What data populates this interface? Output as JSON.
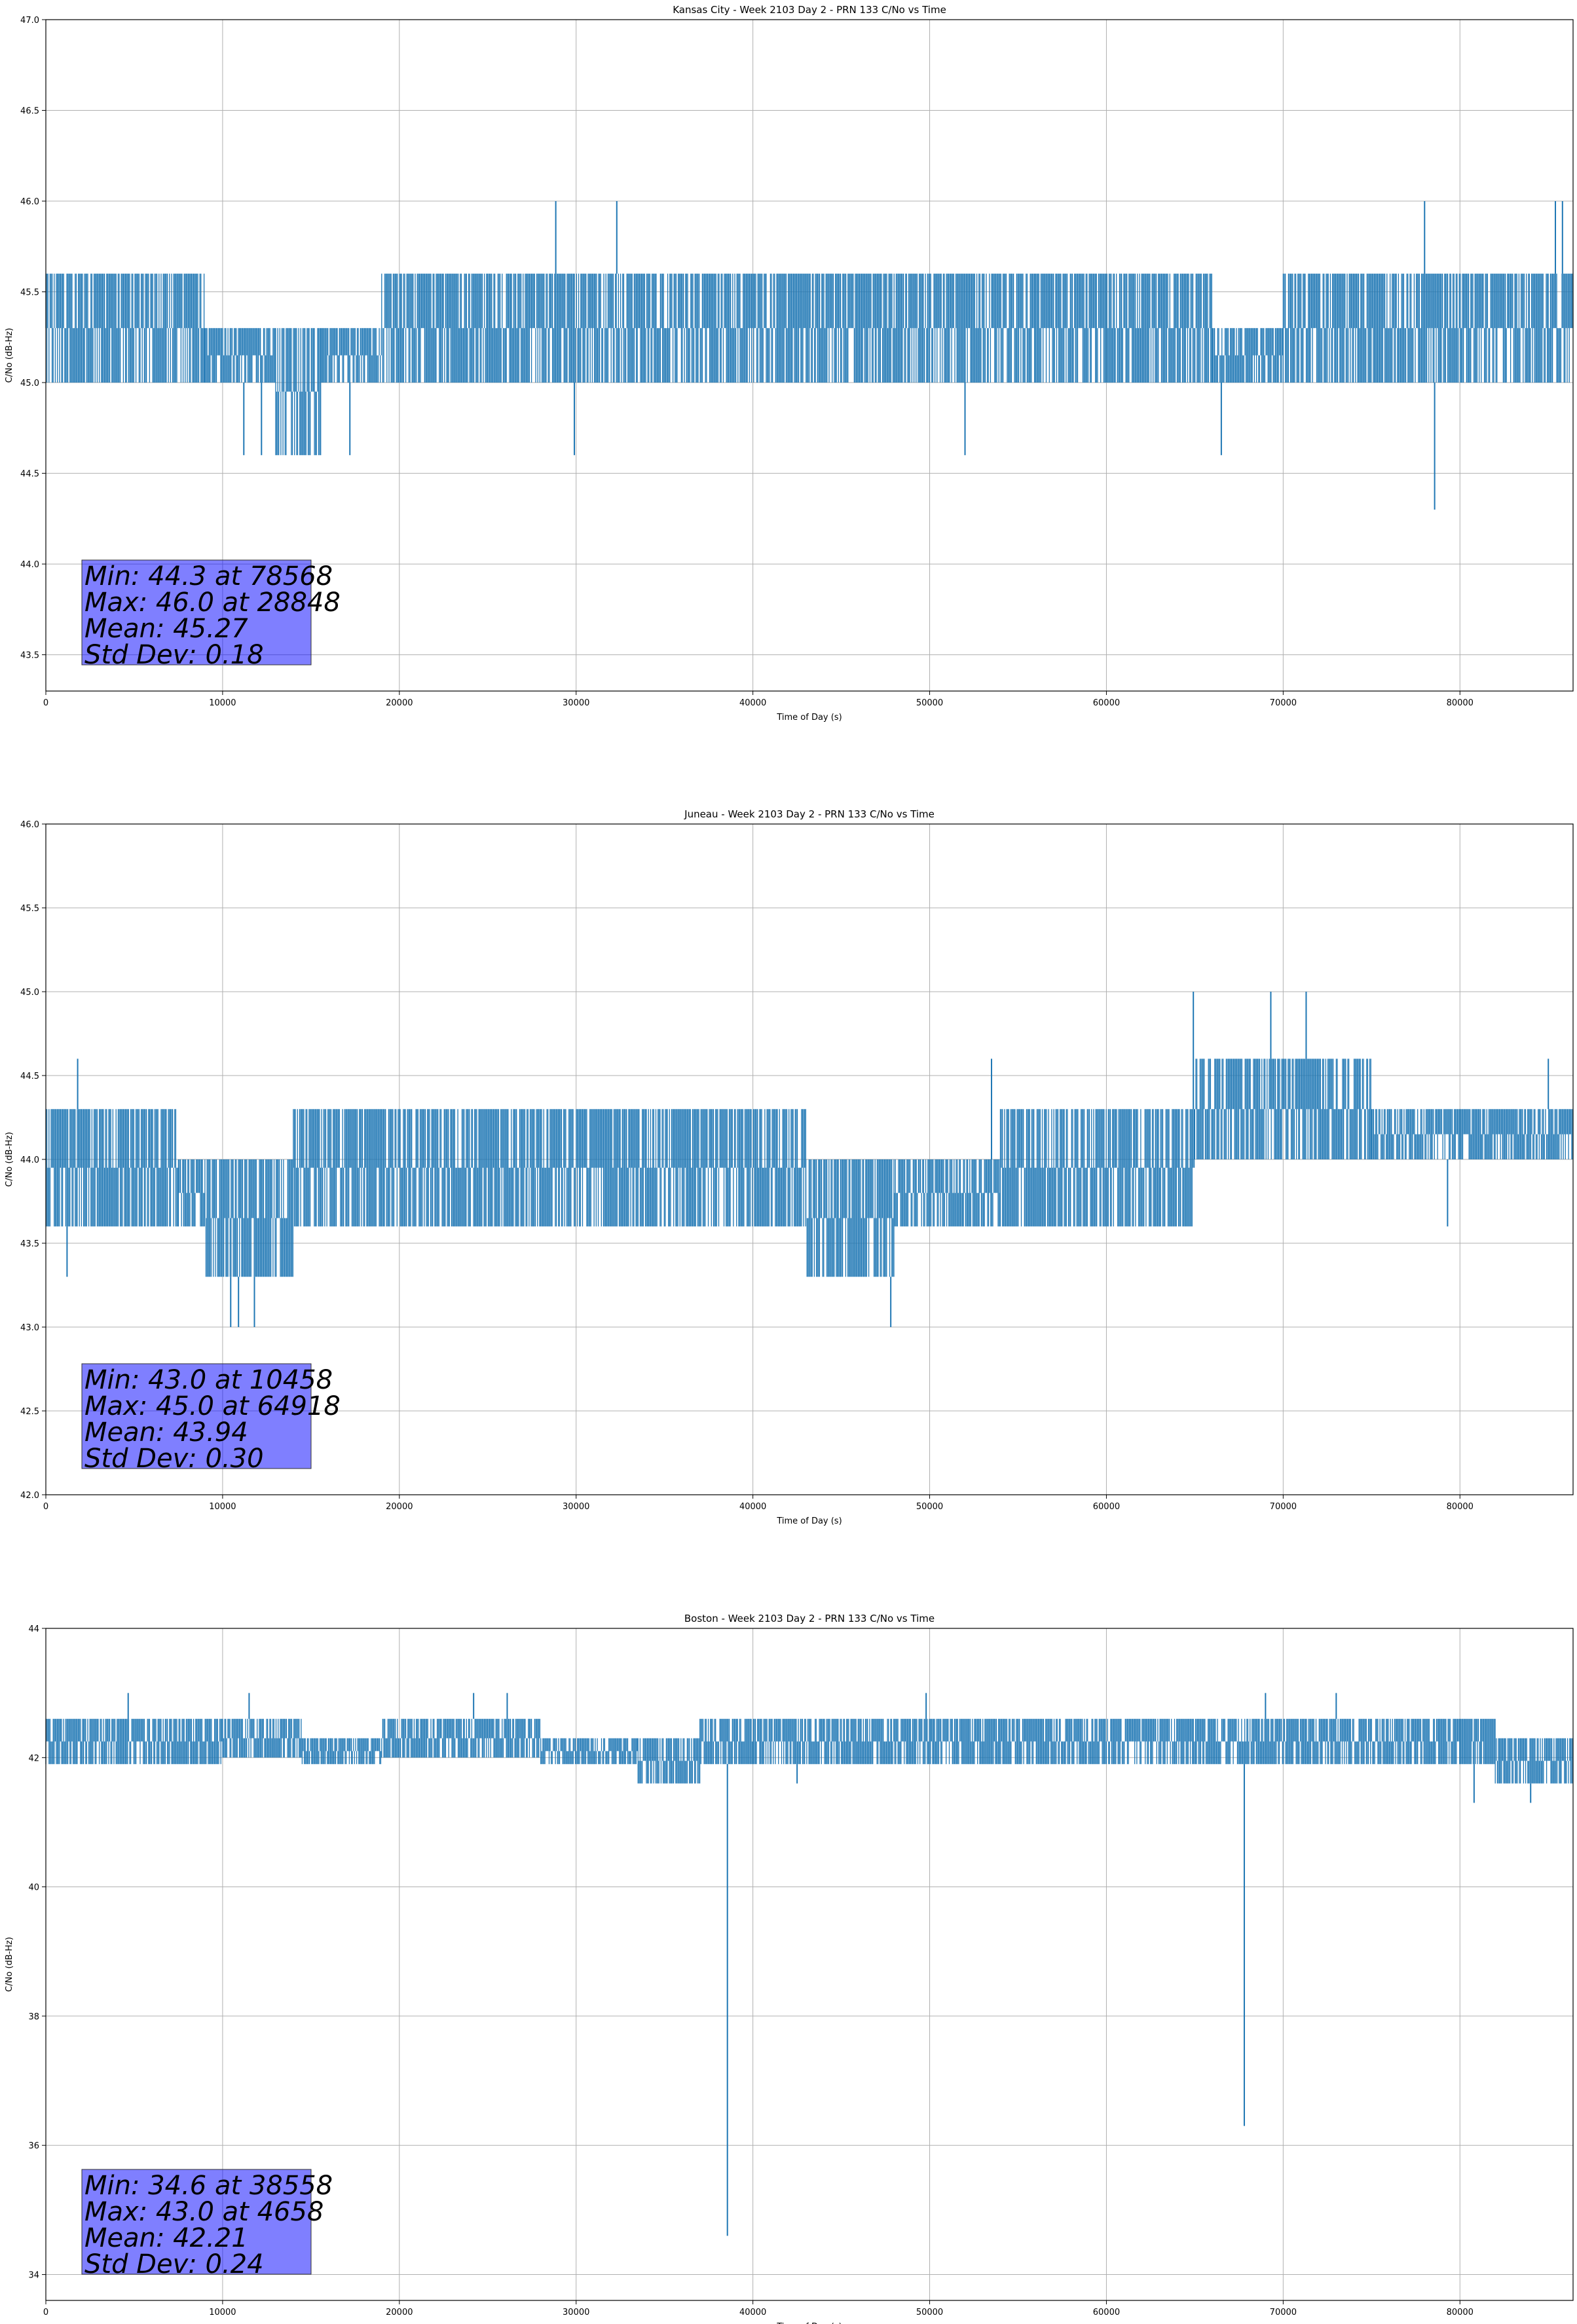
{
  "chart_data": [
    {
      "type": "line",
      "title": "Kansas City - Week 2103 Day 2 - PRN 133 C/No vs Time",
      "xlabel": "Time of Day (s)",
      "ylabel": "C/No (dB-Hz)",
      "xlim": [
        0,
        86400
      ],
      "ylim": [
        43.3,
        47.0
      ],
      "xticks": [
        0,
        10000,
        20000,
        30000,
        40000,
        50000,
        60000,
        70000,
        80000
      ],
      "xtick_labels": [
        "0",
        "10000",
        "20000",
        "30000",
        "40000",
        "50000",
        "60000",
        "70000",
        "80000"
      ],
      "yticks": [
        43.5,
        44.0,
        44.5,
        45.0,
        45.5,
        46.0,
        46.5,
        47.0
      ],
      "ytick_labels": [
        "43.5",
        "44.0",
        "44.5",
        "45.0",
        "45.5",
        "46.0",
        "46.5",
        "47.0"
      ],
      "grid": true,
      "color": "#1f77b4",
      "segments": [
        {
          "x": [
            0,
            9000
          ],
          "lo": 45.0,
          "hi": 45.6
        },
        {
          "x": [
            9000,
            13000
          ],
          "lo": 45.0,
          "hi": 45.3
        },
        {
          "x": [
            13000,
            15600
          ],
          "lo": 44.6,
          "hi": 45.3
        },
        {
          "x": [
            15600,
            19000
          ],
          "lo": 45.0,
          "hi": 45.3
        },
        {
          "x": [
            19000,
            56000
          ],
          "lo": 45.0,
          "hi": 45.6
        },
        {
          "x": [
            56000,
            66000
          ],
          "lo": 45.0,
          "hi": 45.6
        },
        {
          "x": [
            66000,
            70000
          ],
          "lo": 45.0,
          "hi": 45.3
        },
        {
          "x": [
            70000,
            86400
          ],
          "lo": 45.0,
          "hi": 45.6
        }
      ],
      "spikes": [
        {
          "x": 28848,
          "y": 46.0
        },
        {
          "x": 32300,
          "y": 46.0
        },
        {
          "x": 29900,
          "y": 44.6
        },
        {
          "x": 52000,
          "y": 44.6
        },
        {
          "x": 66500,
          "y": 44.6
        },
        {
          "x": 78000,
          "y": 46.0
        },
        {
          "x": 78568,
          "y": 44.3
        },
        {
          "x": 85400,
          "y": 46.0
        },
        {
          "x": 85800,
          "y": 46.0
        },
        {
          "x": 11200,
          "y": 44.6
        },
        {
          "x": 12200,
          "y": 44.6
        },
        {
          "x": 17200,
          "y": 44.6
        }
      ],
      "stats": [
        "Min: 44.3 at 78568",
        "Max: 46.0 at 28848",
        "Mean: 45.27",
        "Std Dev: 0.18"
      ]
    },
    {
      "type": "line",
      "title": "Juneau - Week 2103 Day 2 - PRN 133 C/No vs Time",
      "xlabel": "Time of Day (s)",
      "ylabel": "C/No (dB-Hz)",
      "xlim": [
        0,
        86400
      ],
      "ylim": [
        42.0,
        46.0
      ],
      "xticks": [
        0,
        10000,
        20000,
        30000,
        40000,
        50000,
        60000,
        70000,
        80000
      ],
      "xtick_labels": [
        "0",
        "10000",
        "20000",
        "30000",
        "40000",
        "50000",
        "60000",
        "70000",
        "80000"
      ],
      "yticks": [
        42.0,
        42.5,
        43.0,
        43.5,
        44.0,
        44.5,
        45.0,
        45.5,
        46.0
      ],
      "ytick_labels": [
        "42.0",
        "42.5",
        "43.0",
        "43.5",
        "44.0",
        "44.5",
        "45.0",
        "45.5",
        "46.0"
      ],
      "grid": true,
      "color": "#1f77b4",
      "segments": [
        {
          "x": [
            0,
            7500
          ],
          "lo": 43.6,
          "hi": 44.3
        },
        {
          "x": [
            7500,
            9000
          ],
          "lo": 43.6,
          "hi": 44.0
        },
        {
          "x": [
            9000,
            14000
          ],
          "lo": 43.3,
          "hi": 44.0
        },
        {
          "x": [
            14000,
            43000
          ],
          "lo": 43.6,
          "hi": 44.3
        },
        {
          "x": [
            43000,
            48000
          ],
          "lo": 43.3,
          "hi": 44.0
        },
        {
          "x": [
            48000,
            54000
          ],
          "lo": 43.6,
          "hi": 44.0
        },
        {
          "x": [
            54000,
            65000
          ],
          "lo": 43.6,
          "hi": 44.3
        },
        {
          "x": [
            65000,
            75000
          ],
          "lo": 44.0,
          "hi": 44.6
        },
        {
          "x": [
            75000,
            86400
          ],
          "lo": 44.0,
          "hi": 44.3
        }
      ],
      "spikes": [
        {
          "x": 1800,
          "y": 44.6
        },
        {
          "x": 1200,
          "y": 43.3
        },
        {
          "x": 10458,
          "y": 43.0
        },
        {
          "x": 10900,
          "y": 43.0
        },
        {
          "x": 11800,
          "y": 43.0
        },
        {
          "x": 47800,
          "y": 43.0
        },
        {
          "x": 64918,
          "y": 45.0
        },
        {
          "x": 69300,
          "y": 45.0
        },
        {
          "x": 71300,
          "y": 45.0
        },
        {
          "x": 79300,
          "y": 43.6
        },
        {
          "x": 53500,
          "y": 44.6
        },
        {
          "x": 85000,
          "y": 44.6
        }
      ],
      "stats": [
        "Min: 43.0 at 10458",
        "Max: 45.0 at 64918",
        "Mean: 43.94",
        "Std Dev: 0.30"
      ]
    },
    {
      "type": "line",
      "title": "Boston - Week 2103 Day 2 - PRN 133 C/No vs Time",
      "xlabel": "Time of Day (s)",
      "ylabel": "C/No (dB-Hz)",
      "xlim": [
        0,
        86400
      ],
      "ylim": [
        33.6,
        44.0
      ],
      "xticks": [
        0,
        10000,
        20000,
        30000,
        40000,
        50000,
        60000,
        70000,
        80000
      ],
      "xtick_labels": [
        "0",
        "10000",
        "20000",
        "30000",
        "40000",
        "50000",
        "60000",
        "70000",
        "80000"
      ],
      "yticks": [
        34,
        36,
        38,
        40,
        42,
        44
      ],
      "ytick_labels": [
        "34",
        "36",
        "38",
        "40",
        "42",
        "44"
      ],
      "grid": true,
      "color": "#1f77b4",
      "segments": [
        {
          "x": [
            0,
            10000
          ],
          "lo": 41.9,
          "hi": 42.6
        },
        {
          "x": [
            10000,
            14500
          ],
          "lo": 42.0,
          "hi": 42.6
        },
        {
          "x": [
            14500,
            19000
          ],
          "lo": 41.9,
          "hi": 42.3
        },
        {
          "x": [
            19000,
            28000
          ],
          "lo": 42.0,
          "hi": 42.6
        },
        {
          "x": [
            28000,
            33500
          ],
          "lo": 41.9,
          "hi": 42.3
        },
        {
          "x": [
            33500,
            37000
          ],
          "lo": 41.6,
          "hi": 42.3
        },
        {
          "x": [
            37000,
            82000
          ],
          "lo": 41.9,
          "hi": 42.6
        },
        {
          "x": [
            82000,
            86400
          ],
          "lo": 41.6,
          "hi": 42.3
        }
      ],
      "spikes": [
        {
          "x": 4658,
          "y": 43.0
        },
        {
          "x": 11500,
          "y": 43.0
        },
        {
          "x": 24200,
          "y": 43.0
        },
        {
          "x": 26100,
          "y": 43.0
        },
        {
          "x": 38558,
          "y": 34.6
        },
        {
          "x": 49800,
          "y": 43.0
        },
        {
          "x": 67800,
          "y": 36.3
        },
        {
          "x": 69000,
          "y": 43.0
        },
        {
          "x": 73000,
          "y": 43.0
        },
        {
          "x": 80800,
          "y": 41.3
        },
        {
          "x": 84000,
          "y": 41.3
        },
        {
          "x": 42500,
          "y": 41.6
        }
      ],
      "stats": [
        "Min: 34.6 at 38558",
        "Max: 43.0 at 4658",
        "Mean: 42.21",
        "Std Dev: 0.24"
      ]
    }
  ]
}
